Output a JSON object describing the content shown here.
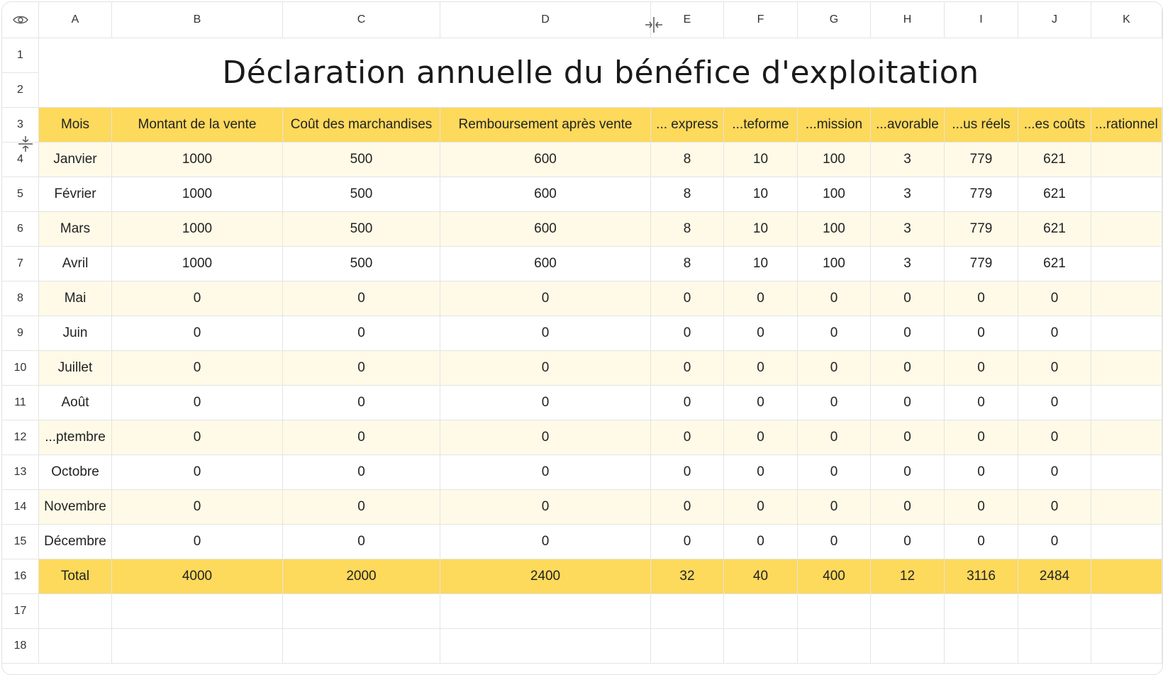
{
  "columns": [
    "A",
    "B",
    "C",
    "D",
    "E",
    "F",
    "G",
    "H",
    "I",
    "J",
    "K"
  ],
  "row_numbers": [
    "1",
    "2",
    "3",
    "4",
    "5",
    "6",
    "7",
    "8",
    "9",
    "10",
    "11",
    "12",
    "13",
    "14",
    "15",
    "16",
    "17",
    "18"
  ],
  "title": "Déclaration annuelle du bénéfice d'exploitation",
  "headers": [
    "Mois",
    "Montant de la vente",
    "Coût des marchandises",
    "Remboursement après vente",
    "... express",
    "...teforme",
    "...mission",
    "...avorable",
    "...us réels",
    "...es coûts",
    "...rationnel"
  ],
  "rows": [
    [
      "Janvier",
      "1000",
      "500",
      "600",
      "8",
      "10",
      "100",
      "3",
      "779",
      "621",
      ""
    ],
    [
      "Février",
      "1000",
      "500",
      "600",
      "8",
      "10",
      "100",
      "3",
      "779",
      "621",
      ""
    ],
    [
      "Mars",
      "1000",
      "500",
      "600",
      "8",
      "10",
      "100",
      "3",
      "779",
      "621",
      ""
    ],
    [
      "Avril",
      "1000",
      "500",
      "600",
      "8",
      "10",
      "100",
      "3",
      "779",
      "621",
      ""
    ],
    [
      "Mai",
      "0",
      "0",
      "0",
      "0",
      "0",
      "0",
      "0",
      "0",
      "0",
      ""
    ],
    [
      "Juin",
      "0",
      "0",
      "0",
      "0",
      "0",
      "0",
      "0",
      "0",
      "0",
      ""
    ],
    [
      "Juillet",
      "0",
      "0",
      "0",
      "0",
      "0",
      "0",
      "0",
      "0",
      "0",
      ""
    ],
    [
      "Août",
      "0",
      "0",
      "0",
      "0",
      "0",
      "0",
      "0",
      "0",
      "0",
      ""
    ],
    [
      "...ptembre",
      "0",
      "0",
      "0",
      "0",
      "0",
      "0",
      "0",
      "0",
      "0",
      ""
    ],
    [
      "Octobre",
      "0",
      "0",
      "0",
      "0",
      "0",
      "0",
      "0",
      "0",
      "0",
      ""
    ],
    [
      "Novembre",
      "0",
      "0",
      "0",
      "0",
      "0",
      "0",
      "0",
      "0",
      "0",
      ""
    ],
    [
      "Décembre",
      "0",
      "0",
      "0",
      "0",
      "0",
      "0",
      "0",
      "0",
      "0",
      ""
    ]
  ],
  "total": [
    "Total",
    "4000",
    "2000",
    "2400",
    "32",
    "40",
    "400",
    "12",
    "3116",
    "2484",
    ""
  ],
  "colors": {
    "header": "#fdd95c",
    "band": "#fefae7",
    "grid": "#e4e4e4"
  },
  "icons": {
    "corner": "eye-icon",
    "col_resize": "column-resize-icon",
    "row_resize": "row-resize-icon"
  }
}
